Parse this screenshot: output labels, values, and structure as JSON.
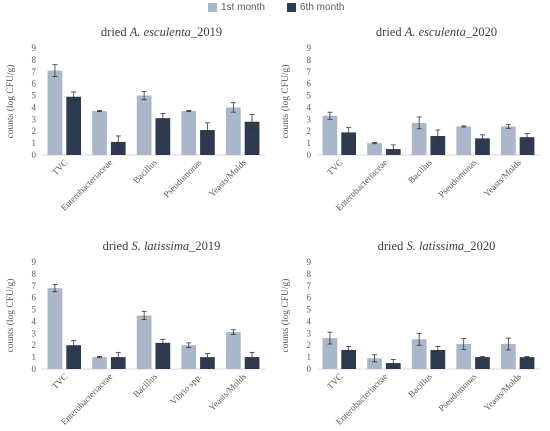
{
  "legend": [
    {
      "label": "1st month",
      "color": "#aab6c9"
    },
    {
      "label": "6th month",
      "color": "#2e3a4f"
    }
  ],
  "chart_data": [
    {
      "type": "bar",
      "title_prefix": "dried ",
      "title_species": "A. esculenta",
      "title_suffix": "_2019",
      "ylabel": "counts (log CFU/g)",
      "ylim": [
        0,
        9
      ],
      "yticks": [
        0,
        1,
        2,
        3,
        4,
        5,
        6,
        7,
        8,
        9
      ],
      "grid": false,
      "categories": [
        "TVC",
        "Enterobacteriaceae",
        "Bacillus",
        "Pseudomonas",
        "Yeasts/Molds"
      ],
      "series": [
        {
          "name": "1st month",
          "values": [
            7.1,
            3.7,
            5.0,
            3.7,
            4.0
          ],
          "errors": [
            0.5,
            0.05,
            0.35,
            0.05,
            0.4
          ]
        },
        {
          "name": "6th month",
          "values": [
            4.9,
            1.1,
            3.1,
            2.1,
            2.8
          ],
          "errors": [
            0.4,
            0.5,
            0.4,
            0.6,
            0.6
          ]
        }
      ]
    },
    {
      "type": "bar",
      "title_prefix": "dried ",
      "title_species": "A. esculenta",
      "title_suffix": "_2020",
      "ylabel": "counts (log CFU/g)",
      "ylim": [
        0,
        9
      ],
      "yticks": [
        0,
        1,
        2,
        3,
        4,
        5,
        6,
        7,
        8,
        9
      ],
      "grid": false,
      "categories": [
        "TVC",
        "Enterobacteriaceae",
        "Bacillus",
        "Pseudomonas",
        "Yeasts/Molds"
      ],
      "series": [
        {
          "name": "1st month",
          "values": [
            3.3,
            1.0,
            2.7,
            2.4,
            2.4
          ],
          "errors": [
            0.3,
            0.05,
            0.5,
            0.05,
            0.15
          ]
        },
        {
          "name": "6th month",
          "values": [
            1.9,
            0.5,
            1.6,
            1.4,
            1.5
          ],
          "errors": [
            0.4,
            0.35,
            0.5,
            0.3,
            0.3
          ]
        }
      ]
    },
    {
      "type": "bar",
      "title_prefix": "dried ",
      "title_species": "S. latissima",
      "title_suffix": "_2019",
      "ylabel": "counts (log CFU/g)",
      "ylim": [
        0,
        9
      ],
      "yticks": [
        0,
        1,
        2,
        3,
        4,
        5,
        6,
        7,
        8,
        9
      ],
      "grid": false,
      "categories": [
        "TVC",
        "Enterobacteriaceae",
        "Bacillus",
        "Vibrio spp.",
        "Yeasts/Molds"
      ],
      "series": [
        {
          "name": "1st month",
          "values": [
            6.8,
            1.0,
            4.5,
            2.0,
            3.1
          ],
          "errors": [
            0.3,
            0.05,
            0.35,
            0.2,
            0.2
          ]
        },
        {
          "name": "6th month",
          "values": [
            2.0,
            1.0,
            2.2,
            1.0,
            1.0
          ],
          "errors": [
            0.4,
            0.4,
            0.3,
            0.3,
            0.4
          ]
        }
      ]
    },
    {
      "type": "bar",
      "title_prefix": "dried ",
      "title_species": "S. latissima",
      "title_suffix": "_2020",
      "ylabel": "counts (log CFU/g)",
      "ylim": [
        0,
        9
      ],
      "yticks": [
        0,
        1,
        2,
        3,
        4,
        5,
        6,
        7,
        8,
        9
      ],
      "grid": false,
      "categories": [
        "TVC",
        "Enterobacteriaceae",
        "Bacillus",
        "Pseudomonas",
        "Yeasts/Molds"
      ],
      "series": [
        {
          "name": "1st month",
          "values": [
            2.6,
            0.9,
            2.5,
            2.1,
            2.1
          ],
          "errors": [
            0.5,
            0.3,
            0.5,
            0.45,
            0.5
          ]
        },
        {
          "name": "6th month",
          "values": [
            1.6,
            0.5,
            1.6,
            1.0,
            1.0
          ],
          "errors": [
            0.3,
            0.3,
            0.3,
            0.05,
            0.05
          ]
        }
      ]
    }
  ]
}
